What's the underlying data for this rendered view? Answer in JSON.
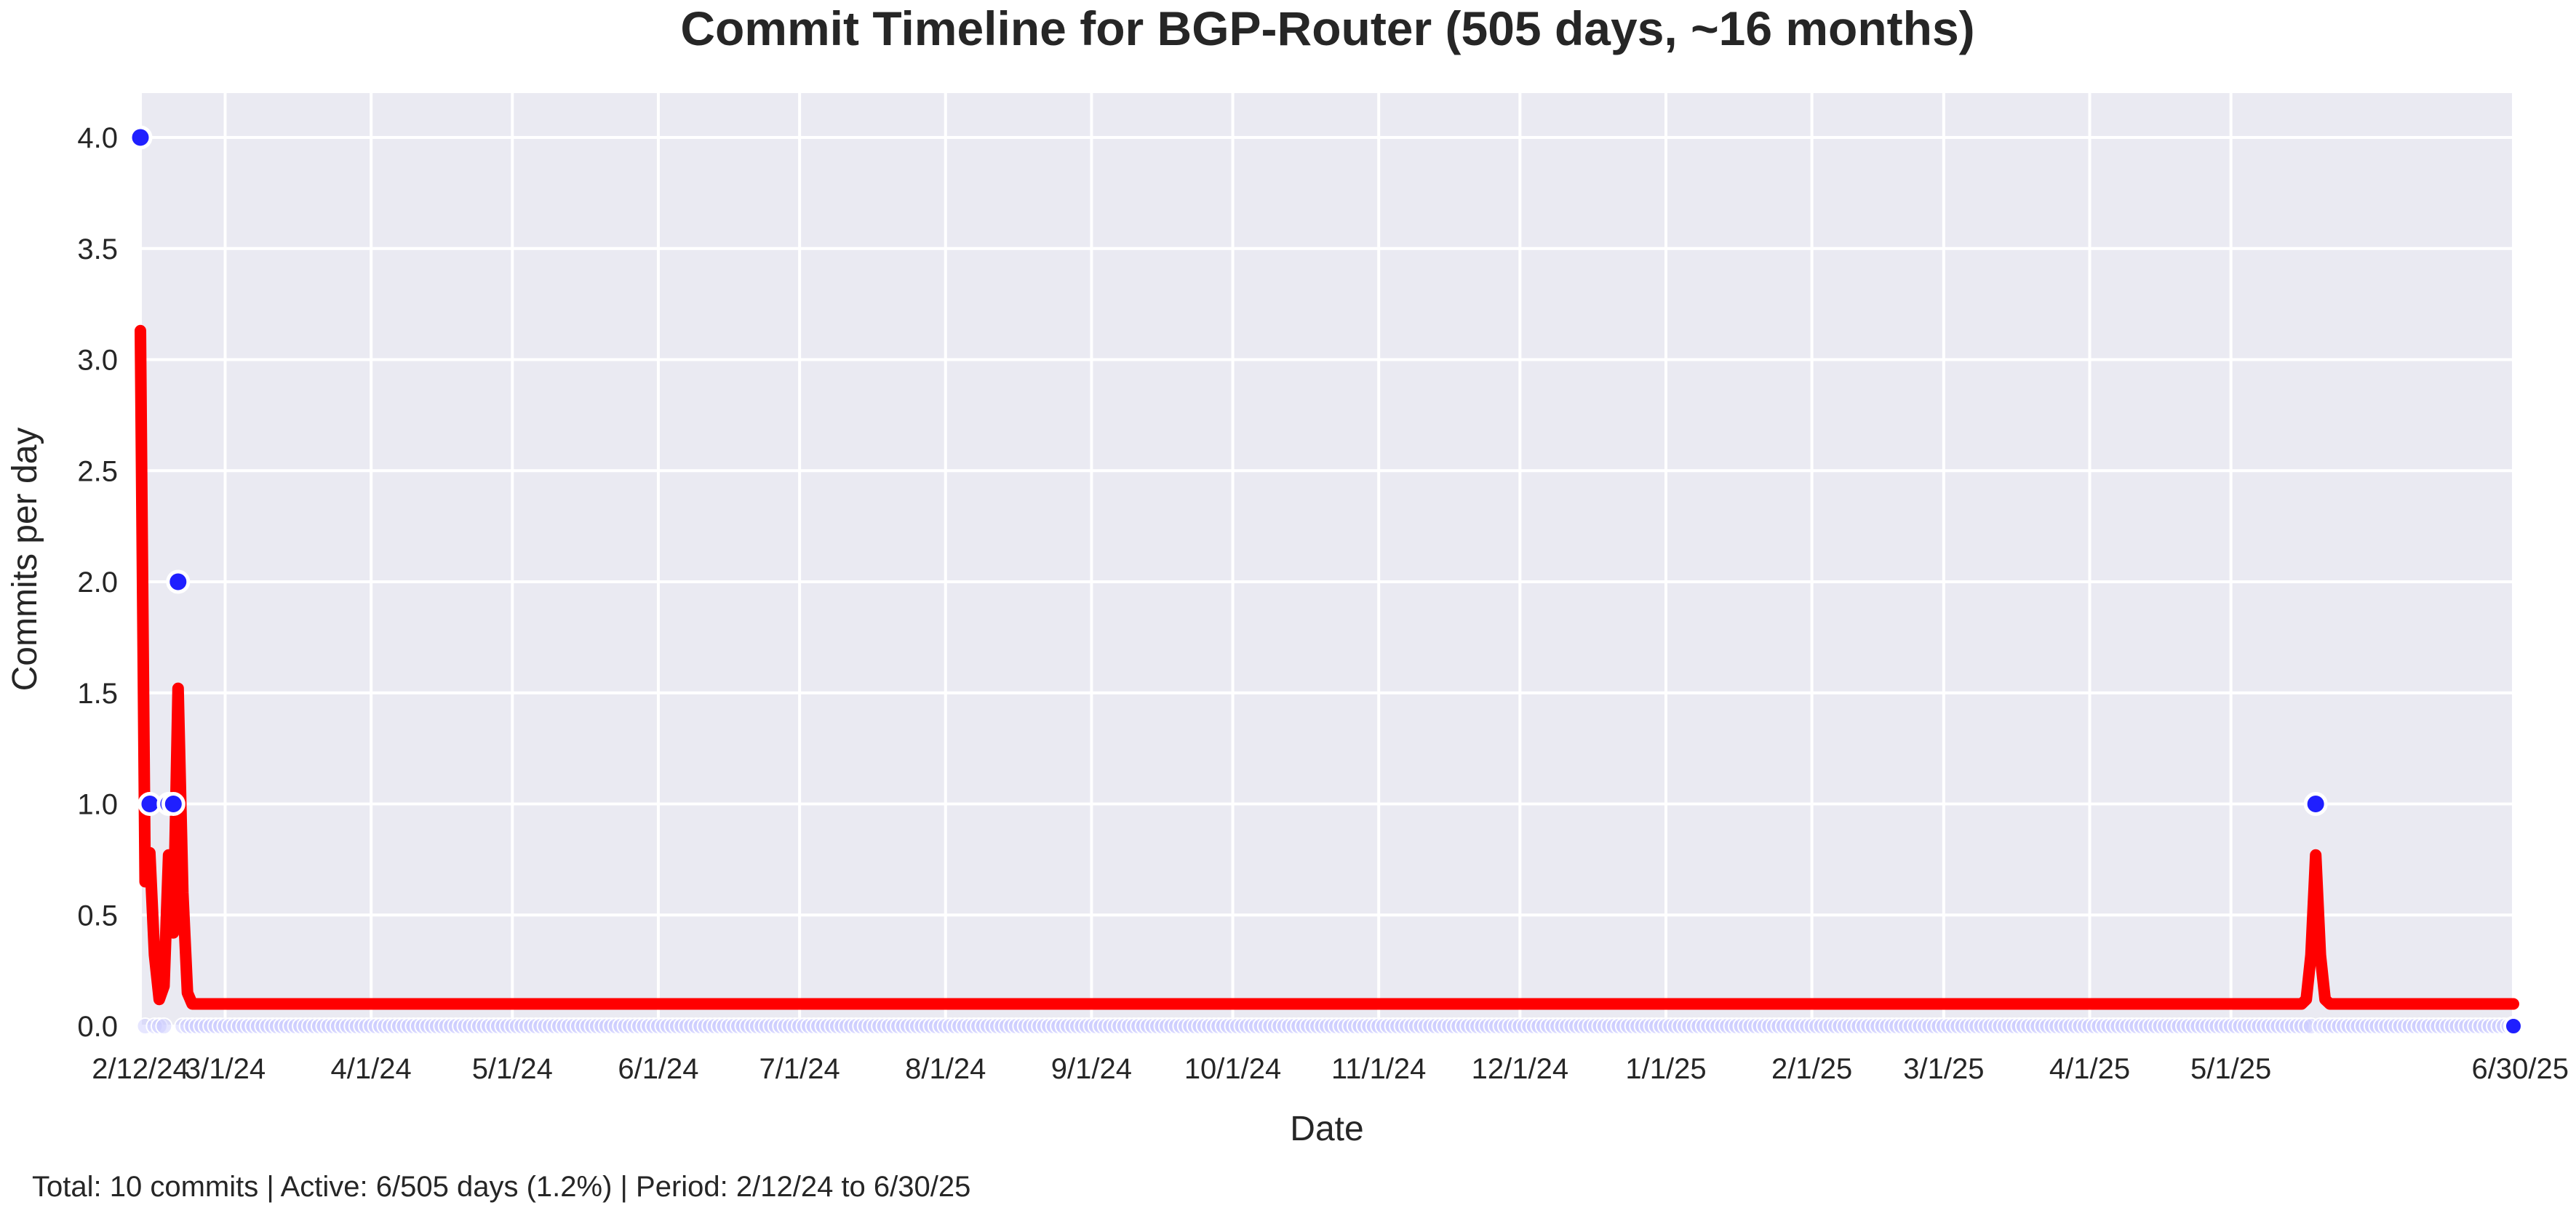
{
  "chart_data": {
    "type": "line",
    "title": "Commit Timeline for BGP-Router (505 days, ~16 months)",
    "xlabel": "Date",
    "ylabel": "Commits per day",
    "x_start": "2024-02-12",
    "x_end": "2025-06-30",
    "ylim": [
      0,
      4.2
    ],
    "yticks": [
      0.0,
      0.5,
      1.0,
      1.5,
      2.0,
      2.5,
      3.0,
      3.5,
      4.0
    ],
    "ytick_labels": [
      "0.0",
      "0.5",
      "1.0",
      "1.5",
      "2.0",
      "2.5",
      "3.0",
      "3.5",
      "4.0"
    ],
    "xticks": [
      {
        "date": "2024-02-12",
        "label": "2/12/24"
      },
      {
        "date": "2024-03-01",
        "label": "3/1/24"
      },
      {
        "date": "2024-04-01",
        "label": "4/1/24"
      },
      {
        "date": "2024-05-01",
        "label": "5/1/24"
      },
      {
        "date": "2024-06-01",
        "label": "6/1/24"
      },
      {
        "date": "2024-07-01",
        "label": "7/1/24"
      },
      {
        "date": "2024-08-01",
        "label": "8/1/24"
      },
      {
        "date": "2024-09-01",
        "label": "9/1/24"
      },
      {
        "date": "2024-10-01",
        "label": "10/1/24"
      },
      {
        "date": "2024-11-01",
        "label": "11/1/24"
      },
      {
        "date": "2024-12-01",
        "label": "12/1/24"
      },
      {
        "date": "2025-01-01",
        "label": "1/1/25"
      },
      {
        "date": "2025-02-01",
        "label": "2/1/25"
      },
      {
        "date": "2025-03-01",
        "label": "3/1/25"
      },
      {
        "date": "2025-04-01",
        "label": "4/1/25"
      },
      {
        "date": "2025-05-01",
        "label": "5/1/25"
      },
      {
        "date": "2025-06-30",
        "label": "6/30/25"
      }
    ],
    "grid": true,
    "series": [
      {
        "kind": "scatter",
        "color": "#1f1fff",
        "points": [
          {
            "date": "2024-02-12",
            "y": 4
          },
          {
            "date": "2024-02-14",
            "y": 1
          },
          {
            "date": "2024-02-18",
            "y": 1
          },
          {
            "date": "2024-02-19",
            "y": 1
          },
          {
            "date": "2024-02-20",
            "y": 2
          },
          {
            "date": "2025-05-19",
            "y": 1
          }
        ]
      },
      {
        "kind": "line",
        "color": "#ff0000",
        "points": [
          {
            "date": "2024-02-12",
            "y": 3.13
          },
          {
            "date": "2024-02-13",
            "y": 0.65
          },
          {
            "date": "2024-02-14",
            "y": 0.78
          },
          {
            "date": "2024-02-15",
            "y": 0.32
          },
          {
            "date": "2024-02-16",
            "y": 0.12
          },
          {
            "date": "2024-02-17",
            "y": 0.18
          },
          {
            "date": "2024-02-18",
            "y": 0.77
          },
          {
            "date": "2024-02-19",
            "y": 0.42
          },
          {
            "date": "2024-02-20",
            "y": 1.52
          },
          {
            "date": "2024-02-21",
            "y": 0.6
          },
          {
            "date": "2024-02-22",
            "y": 0.15
          },
          {
            "date": "2024-02-23",
            "y": 0.1
          },
          {
            "date": "2025-05-16",
            "y": 0.1
          },
          {
            "date": "2025-05-17",
            "y": 0.12
          },
          {
            "date": "2025-05-18",
            "y": 0.32
          },
          {
            "date": "2025-05-19",
            "y": 0.77
          },
          {
            "date": "2025-05-20",
            "y": 0.32
          },
          {
            "date": "2025-05-21",
            "y": 0.12
          },
          {
            "date": "2025-05-22",
            "y": 0.1
          },
          {
            "date": "2025-06-30",
            "y": 0.1
          }
        ]
      }
    ],
    "footer": "Total: 10 commits | Active: 6/505 days (1.2%) | Period: 2/12/24 to 6/30/25"
  }
}
